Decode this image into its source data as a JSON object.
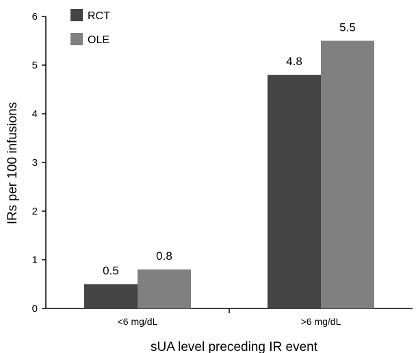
{
  "chart_data": {
    "type": "bar",
    "categories": [
      "<6 mg/dL",
      ">6 mg/dL"
    ],
    "series": [
      {
        "name": "RCT",
        "values": [
          0.5,
          4.8
        ],
        "labels": [
          "0.5",
          "4.8"
        ],
        "color": "#444444"
      },
      {
        "name": "OLE",
        "values": [
          0.8,
          5.5
        ],
        "labels": [
          "0.8",
          "5.5"
        ],
        "color": "#808080"
      }
    ],
    "xlabel": "sUA level preceding IR event",
    "ylabel": "IRs per 100 infusions",
    "ylim": [
      0,
      6
    ],
    "yticks": [
      "0",
      "1",
      "2",
      "3",
      "4",
      "5",
      "6"
    ],
    "grid": false,
    "legend_position": "top-left"
  }
}
